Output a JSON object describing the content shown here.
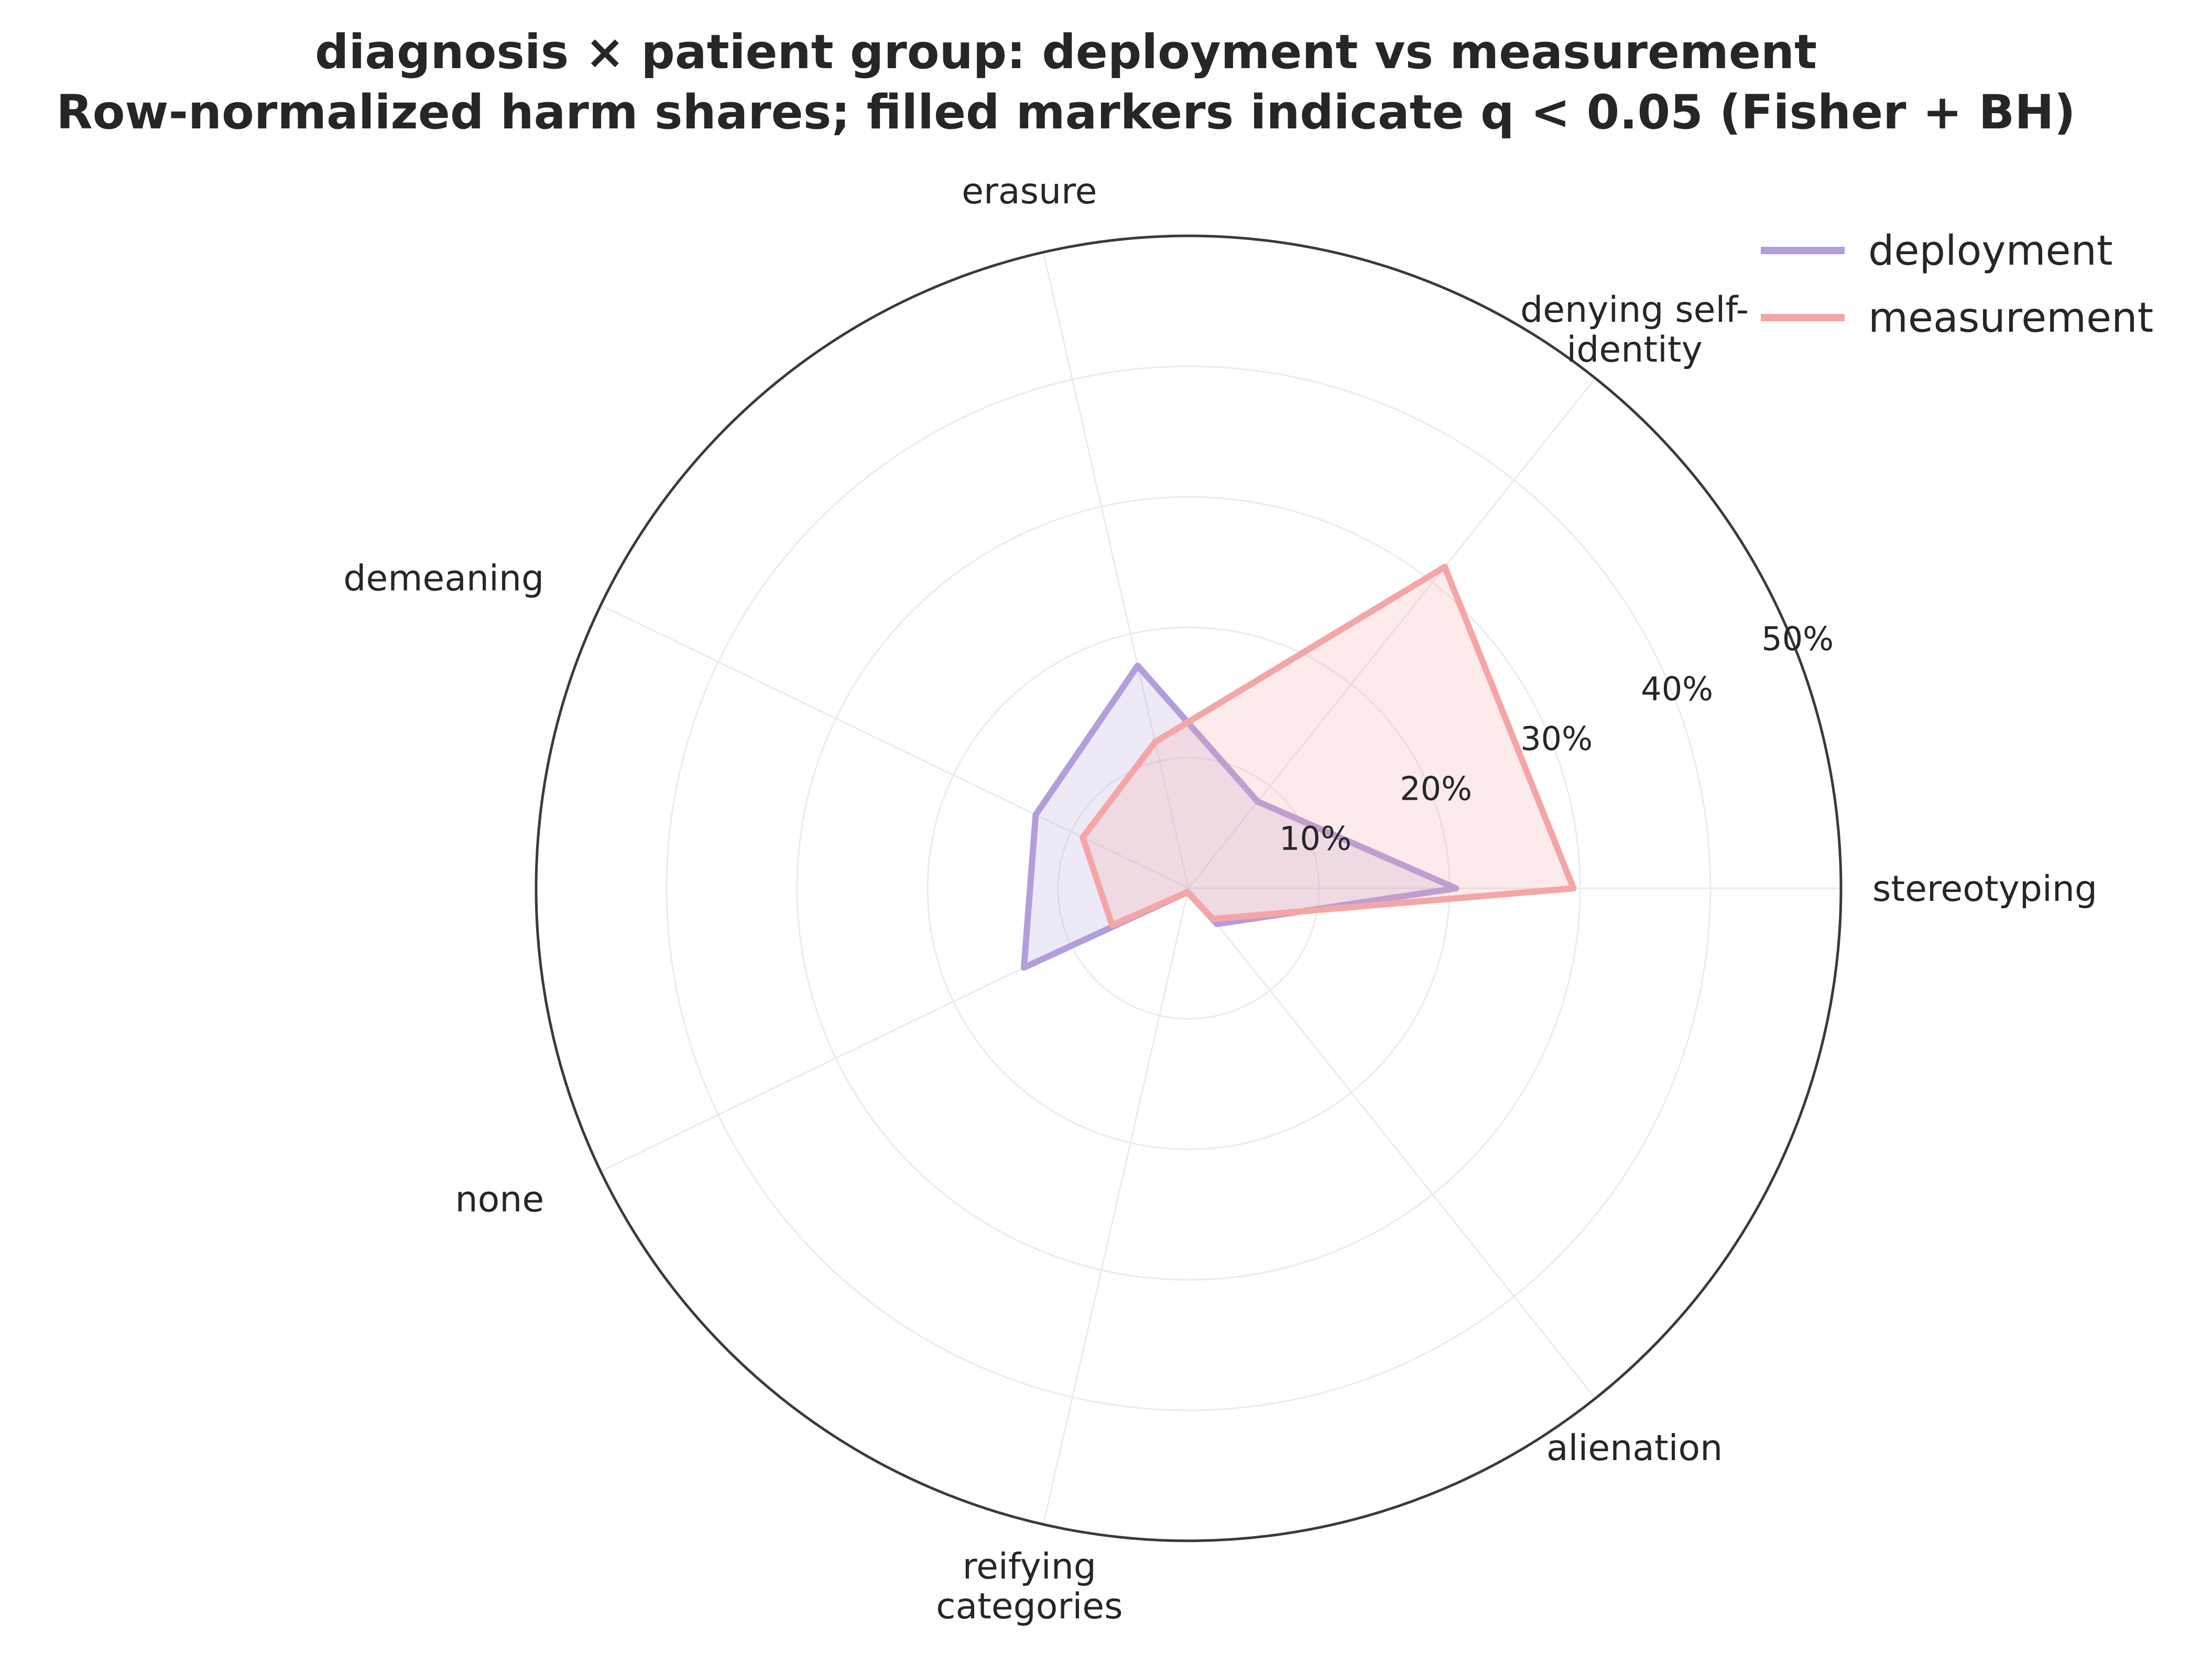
{
  "chart_data": {
    "type": "radar",
    "title": "diagnosis × patient group: deployment vs measurement",
    "subtitle": "Row-normalized harm shares; filled markers indicate q < 0.05 (Fisher + BH)",
    "categories": [
      "stereotyping",
      "denying self-identity",
      "erasure",
      "demeaning",
      "none",
      "reifying categories",
      "alienation"
    ],
    "category_lines": [
      [
        "stereotyping"
      ],
      [
        "denying self-",
        "identity"
      ],
      [
        "erasure"
      ],
      [
        "demeaning"
      ],
      [
        "none"
      ],
      [
        "reifying",
        "categories"
      ],
      [
        "alienation"
      ]
    ],
    "r_ticks": [
      10,
      20,
      30,
      40,
      50
    ],
    "r_tick_labels": [
      "10%",
      "20%",
      "30%",
      "40%",
      "50%"
    ],
    "rlim": [
      0,
      50
    ],
    "grid": true,
    "legend_position": "top-right",
    "series": [
      {
        "name": "deployment",
        "color": "#b39ddb",
        "values": [
          20.5,
          8.5,
          17.5,
          13.0,
          14.0,
          0.3,
          3.5
        ]
      },
      {
        "name": "measurement",
        "color": "#f4a6a6",
        "values": [
          29.5,
          31.5,
          11.5,
          9.0,
          6.5,
          0.3,
          3.0
        ]
      }
    ]
  }
}
